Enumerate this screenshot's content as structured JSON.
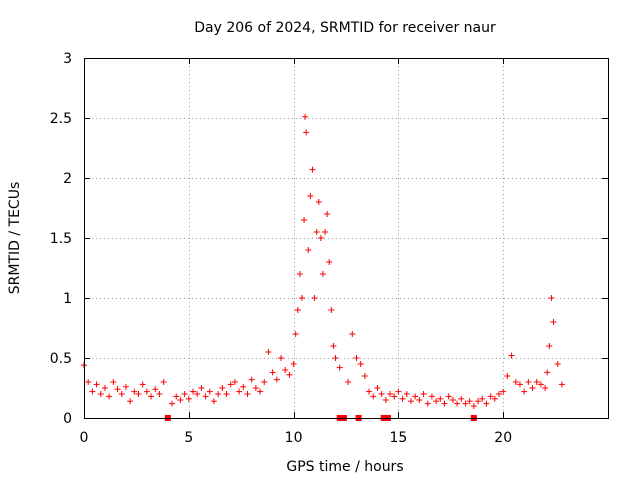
{
  "chart_data": {
    "type": "scatter",
    "title": "Day 206 of 2024, SRMTID for receiver naur",
    "xlabel": "GPS time / hours",
    "ylabel": "SRMTID / TECUs",
    "xlim": [
      0,
      25
    ],
    "ylim": [
      0,
      3
    ],
    "xticks": [
      0,
      5,
      10,
      15,
      20
    ],
    "yticks": [
      0,
      0.5,
      1,
      1.5,
      2,
      2.5,
      3
    ],
    "xtick_labels": [
      "0",
      "5",
      "10",
      "15",
      "20"
    ],
    "ytick_labels": [
      "0",
      "0.5",
      "1",
      "1.5",
      "2",
      "2.5",
      "3"
    ],
    "grid": true,
    "marker": "+",
    "color": "#ff0000",
    "data_gaps_hours": [
      4.0,
      12.2,
      12.4,
      13.1,
      14.3,
      14.5,
      18.6
    ],
    "series": [
      {
        "name": "SRMTID",
        "x": [
          0.0,
          0.2,
          0.4,
          0.6,
          0.8,
          1.0,
          1.2,
          1.4,
          1.6,
          1.8,
          2.0,
          2.2,
          2.4,
          2.6,
          2.8,
          3.0,
          3.2,
          3.4,
          3.6,
          3.8,
          4.0,
          4.2,
          4.4,
          4.6,
          4.8,
          5.0,
          5.2,
          5.4,
          5.6,
          5.8,
          6.0,
          6.2,
          6.4,
          6.6,
          6.8,
          7.0,
          7.2,
          7.4,
          7.6,
          7.8,
          8.0,
          8.2,
          8.4,
          8.6,
          8.8,
          9.0,
          9.2,
          9.4,
          9.6,
          9.8,
          10.0,
          10.1,
          10.2,
          10.3,
          10.4,
          10.5,
          10.55,
          10.6,
          10.7,
          10.8,
          10.9,
          11.0,
          11.1,
          11.2,
          11.3,
          11.4,
          11.5,
          11.6,
          11.7,
          11.8,
          11.9,
          12.0,
          12.2,
          12.4,
          12.6,
          12.8,
          13.0,
          13.2,
          13.4,
          13.6,
          13.8,
          14.0,
          14.2,
          14.4,
          14.6,
          14.8,
          15.0,
          15.2,
          15.4,
          15.6,
          15.8,
          16.0,
          16.2,
          16.4,
          16.6,
          16.8,
          17.0,
          17.2,
          17.4,
          17.6,
          17.8,
          18.0,
          18.2,
          18.4,
          18.6,
          18.8,
          19.0,
          19.2,
          19.4,
          19.6,
          19.8,
          20.0,
          20.2,
          20.4,
          20.6,
          20.8,
          21.0,
          21.2,
          21.4,
          21.6,
          21.8,
          22.0,
          22.1,
          22.2,
          22.3,
          22.4,
          22.6,
          22.8
        ],
        "y": [
          0.44,
          0.3,
          0.22,
          0.28,
          0.2,
          0.25,
          0.18,
          0.3,
          0.24,
          0.2,
          0.26,
          0.14,
          0.22,
          0.2,
          0.28,
          0.22,
          0.18,
          0.24,
          0.2,
          0.3,
          0.0,
          0.12,
          0.18,
          0.15,
          0.2,
          0.16,
          0.22,
          0.2,
          0.25,
          0.18,
          0.22,
          0.14,
          0.2,
          0.25,
          0.2,
          0.28,
          0.3,
          0.22,
          0.26,
          0.2,
          0.32,
          0.25,
          0.22,
          0.3,
          0.55,
          0.38,
          0.32,
          0.5,
          0.4,
          0.36,
          0.45,
          0.7,
          0.9,
          1.2,
          1.0,
          1.65,
          2.51,
          2.38,
          1.4,
          1.85,
          2.07,
          1.0,
          1.55,
          1.8,
          1.5,
          1.2,
          1.55,
          1.7,
          1.3,
          0.9,
          0.6,
          0.5,
          0.42,
          0.0,
          0.3,
          0.7,
          0.5,
          0.45,
          0.35,
          0.22,
          0.18,
          0.25,
          0.2,
          0.15,
          0.2,
          0.18,
          0.22,
          0.16,
          0.2,
          0.14,
          0.18,
          0.15,
          0.2,
          0.12,
          0.18,
          0.14,
          0.16,
          0.12,
          0.18,
          0.15,
          0.12,
          0.16,
          0.12,
          0.14,
          0.1,
          0.14,
          0.16,
          0.12,
          0.18,
          0.16,
          0.2,
          0.22,
          0.35,
          0.52,
          0.3,
          0.28,
          0.22,
          0.3,
          0.25,
          0.3,
          0.28,
          0.25,
          0.38,
          0.6,
          1.0,
          0.8,
          0.45,
          0.28
        ]
      }
    ]
  }
}
